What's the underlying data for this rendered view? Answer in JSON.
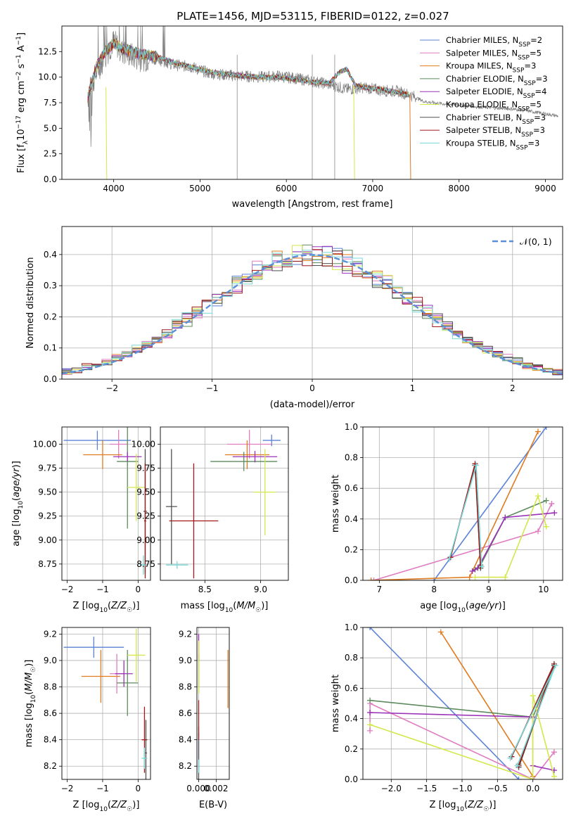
{
  "figure": {
    "title": "PLATE=1456, MJD=53115, FIBERID=0122, z=0.027"
  },
  "models": [
    {
      "name": "Chabrier MILES, N_SSP=2",
      "base": "Chabrier MILES, N",
      "sub": "SSP",
      "tail": "=2",
      "color": "#5b82d6"
    },
    {
      "name": "Salpeter MILES, N_SSP=5",
      "base": "Salpeter MILES, N",
      "sub": "SSP",
      "tail": "=5",
      "color": "#e07cc0"
    },
    {
      "name": "Kroupa MILES, N_SSP=3",
      "base": "Kroupa MILES, N",
      "sub": "SSP",
      "tail": "=3",
      "color": "#e07b20"
    },
    {
      "name": "Chabrier ELODIE, N_SSP=3",
      "base": "Chabrier ELODIE, N",
      "sub": "SSP",
      "tail": "=3",
      "color": "#5e8b5e"
    },
    {
      "name": "Salpeter ELODIE, N_SSP=4",
      "base": "Salpeter ELODIE, N",
      "sub": "SSP",
      "tail": "=4",
      "color": "#9b30b8"
    },
    {
      "name": "Kroupa ELODIE, N_SSP=5",
      "base": "Kroupa ELODIE, N",
      "sub": "SSP",
      "tail": "=5",
      "color": "#d4e84a"
    },
    {
      "name": "Chabrier STELIB, N_SSP=3",
      "base": "Chabrier STELIB, N",
      "sub": "SSP",
      "tail": "=3",
      "color": "#505050"
    },
    {
      "name": "Salpeter STELIB, N_SSP=3",
      "base": "Salpeter STELIB, N",
      "sub": "SSP",
      "tail": "=3",
      "color": "#a01818"
    },
    {
      "name": "Kroupa STELIB, N_SSP=3",
      "base": "Kroupa STELIB, N",
      "sub": "SSP",
      "tail": "=3",
      "color": "#7ad8d8"
    }
  ],
  "chart_data": [
    {
      "id": "spectrum",
      "type": "line",
      "title": "PLATE=1456, MJD=53115, FIBERID=0122, z=0.027",
      "xlabel": "wavelength [Angstrom, rest frame]",
      "ylabel": "Flux [f_λ 10^-17 erg cm^-2 s^-1 A^-1]",
      "xlim": [
        3400,
        9200
      ],
      "ylim": [
        0,
        15
      ],
      "xticks": [
        4000,
        5000,
        6000,
        7000,
        8000,
        9000
      ],
      "yticks": [
        0.0,
        2.5,
        5.0,
        7.5,
        10.0,
        12.5
      ],
      "xtick_labels": [
        "4000",
        "5000",
        "6000",
        "7000",
        "8000",
        "9000"
      ],
      "ytick_labels": [
        "0.0",
        "2.5",
        "5.0",
        "7.5",
        "10.0",
        "12.5"
      ],
      "legend": "upper right",
      "observed": {
        "x": [
          3700,
          3800,
          3900,
          4000,
          4100,
          4300,
          4500,
          4700,
          4900,
          5100,
          5300,
          5500,
          5700,
          5900,
          6100,
          6300,
          6500,
          6700,
          6900,
          7100,
          7300,
          7450,
          7600,
          7800,
          8000,
          8200,
          8400,
          8600,
          8800,
          9000,
          9150
        ],
        "y": [
          8.0,
          10.5,
          12.0,
          13.5,
          12.5,
          11.8,
          11.8,
          11.2,
          11.0,
          10.4,
          10.2,
          10.1,
          10.0,
          10.1,
          9.9,
          9.6,
          9.3,
          8.8,
          9.0,
          8.7,
          8.6,
          8.2,
          7.6,
          7.4,
          7.3,
          7.1,
          7.0,
          6.9,
          6.7,
          6.4,
          6.2
        ]
      },
      "model_spectrum": {
        "x": [
          3700,
          3800,
          3900,
          4000,
          4100,
          4300,
          4500,
          4700,
          4900,
          5100,
          5300,
          5500,
          5700,
          5900,
          6100,
          6300,
          6500,
          6600,
          6700,
          6800,
          6900,
          7100,
          7300,
          7420
        ],
        "y": [
          8.0,
          11.0,
          12.5,
          13.3,
          12.8,
          12.3,
          12.0,
          11.4,
          11.0,
          10.5,
          10.3,
          10.1,
          10.0,
          10.0,
          9.8,
          9.5,
          9.4,
          10.4,
          10.8,
          9.2,
          9.0,
          8.8,
          8.5,
          8.3
        ]
      }
    },
    {
      "id": "residuals",
      "type": "histogram",
      "xlabel": "(data-model)/error",
      "ylabel": "Normed distribution",
      "xlim": [
        -2.5,
        2.5
      ],
      "ylim": [
        0,
        0.49
      ],
      "xticks": [
        -2,
        -1,
        0,
        1,
        2
      ],
      "yticks": [
        0.0,
        0.1,
        0.2,
        0.3,
        0.4
      ],
      "xtick_labels": [
        "−2",
        "−1",
        "0",
        "1",
        "2"
      ],
      "ytick_labels": [
        "0.0",
        "0.1",
        "0.2",
        "0.3",
        "0.4"
      ],
      "legend_label": "𝒩(0, 1)",
      "legend": "upper right",
      "bin_width": 0.1,
      "bin_start": -2.5
    },
    {
      "id": "age_vs_Z",
      "type": "errorbar",
      "xlabel": "Z [log10(Z/Z☉)]",
      "ylabel": "age [log10(age/yr)]",
      "xlim": [
        -2.15,
        0.35
      ],
      "ylim": [
        8.58,
        10.18
      ],
      "xticks": [
        -2,
        -1,
        0
      ],
      "yticks": [
        8.75,
        9.0,
        9.25,
        9.5,
        9.75,
        10.0
      ],
      "xtick_labels": [
        "−2",
        "−1",
        "0"
      ],
      "ytick_labels": [
        "8.75",
        "9.00",
        "9.25",
        "9.50",
        "9.75",
        "10.00"
      ],
      "points": [
        {
          "m": 0,
          "x": -1.15,
          "xerr": 0.95,
          "y": 10.04,
          "yerr": 0.1
        },
        {
          "m": 1,
          "x": -0.55,
          "xerr": 0.25,
          "y": 10.0,
          "yerr": 0.15
        },
        {
          "m": 2,
          "x": -1.0,
          "xerr": 0.55,
          "y": 9.89,
          "yerr": 0.15
        },
        {
          "m": 3,
          "x": -0.3,
          "xerr": 0.3,
          "y": 9.82,
          "yerr": 0.7
        },
        {
          "m": 4,
          "x": -0.3,
          "xerr": 0.4,
          "y": 9.87,
          "yerr": 0.05
        },
        {
          "m": 5,
          "x": -0.05,
          "xerr": 0.25,
          "y": 9.55,
          "yerr": 0.35
        },
        {
          "m": 6,
          "x": 0.2,
          "xerr": 0.05,
          "y": 9.3,
          "yerr": 0.65
        },
        {
          "m": 7,
          "x": 0.2,
          "xerr": 0.03,
          "y": 9.2,
          "yerr": 0.6
        },
        {
          "m": 8,
          "x": 0.15,
          "xerr": 0.1,
          "y": 8.74,
          "yerr": 0.1
        }
      ]
    },
    {
      "id": "age_vs_mass",
      "type": "errorbar",
      "xlabel": "mass [log10(M/M☉)]",
      "ylabel": "",
      "xlim": [
        8.1,
        9.25
      ],
      "ylim": [
        8.58,
        10.18
      ],
      "xticks": [
        8.5,
        9.0
      ],
      "yticks": [
        8.75,
        9.0,
        9.25,
        9.5,
        9.75,
        10.0
      ],
      "xtick_labels": [
        "8.5",
        "9.0"
      ],
      "ytick_labels": [
        "8.75",
        "9.00",
        "9.25",
        "9.50",
        "9.75",
        "10.00"
      ],
      "points": [
        {
          "m": 0,
          "x": 9.1,
          "xerr": 0.08,
          "y": 10.04,
          "yerr": 0.06
        },
        {
          "m": 1,
          "x": 8.9,
          "xerr": 0.2,
          "y": 10.0,
          "yerr": 0.15
        },
        {
          "m": 2,
          "x": 8.88,
          "xerr": 0.2,
          "y": 9.89,
          "yerr": 0.15
        },
        {
          "m": 3,
          "x": 8.85,
          "xerr": 0.3,
          "y": 9.82,
          "yerr": 0.1
        },
        {
          "m": 4,
          "x": 8.95,
          "xerr": 0.2,
          "y": 9.87,
          "yerr": 0.06
        },
        {
          "m": 5,
          "x": 9.04,
          "xerr": 0.1,
          "y": 9.5,
          "yerr": 0.45
        },
        {
          "m": 6,
          "x": 8.2,
          "xerr": 0.05,
          "y": 9.35,
          "yerr": 0.6
        },
        {
          "m": 7,
          "x": 8.4,
          "xerr": 0.22,
          "y": 9.2,
          "yerr": 0.6
        },
        {
          "m": 8,
          "x": 8.25,
          "xerr": 0.1,
          "y": 8.74,
          "yerr": 0.04
        }
      ]
    },
    {
      "id": "weight_vs_age",
      "type": "line",
      "xlabel": "age [log10(age/yr)]",
      "ylabel": "mass weight",
      "xlim": [
        6.7,
        10.35
      ],
      "ylim": [
        0,
        1.0
      ],
      "xticks": [
        7,
        8,
        9,
        10
      ],
      "yticks": [
        0.0,
        0.2,
        0.4,
        0.6,
        0.8,
        1.0
      ],
      "xtick_labels": [
        "7",
        "8",
        "9",
        "10"
      ],
      "ytick_labels": [
        "0.0",
        "0.2",
        "0.4",
        "0.6",
        "0.8",
        "1.0"
      ],
      "series": [
        {
          "m": 0,
          "x": [
            8.0,
            10.05
          ],
          "y": [
            0.0,
            1.0
          ]
        },
        {
          "m": 1,
          "x": [
            6.9,
            9.9,
            10.15,
            10.15
          ],
          "y": [
            0.0,
            0.32,
            0.5,
            0.5
          ]
        },
        {
          "m": 2,
          "x": [
            6.85,
            8.65,
            9.9
          ],
          "y": [
            0.0,
            0.02,
            0.97
          ]
        },
        {
          "m": 3,
          "x": [
            8.75,
            8.85,
            9.3,
            10.05
          ],
          "y": [
            0.07,
            0.1,
            0.41,
            0.52
          ]
        },
        {
          "m": 4,
          "x": [
            8.7,
            8.8,
            9.3,
            10.2
          ],
          "y": [
            0.06,
            0.08,
            0.41,
            0.44
          ]
        },
        {
          "m": 5,
          "x": [
            8.75,
            9.3,
            9.9,
            10.05
          ],
          "y": [
            0.02,
            0.02,
            0.55,
            0.35
          ]
        },
        {
          "m": 6,
          "x": [
            8.3,
            8.75,
            8.85
          ],
          "y": [
            0.15,
            0.75,
            0.08
          ]
        },
        {
          "m": 7,
          "x": [
            8.3,
            8.75,
            8.85
          ],
          "y": [
            0.15,
            0.76,
            0.09
          ]
        },
        {
          "m": 8,
          "x": [
            8.28,
            8.77,
            8.87
          ],
          "y": [
            0.14,
            0.75,
            0.09
          ]
        }
      ]
    },
    {
      "id": "mass_vs_Z",
      "type": "errorbar",
      "xlabel": "Z [log10(Z/Z☉)]",
      "ylabel": "mass [log10(M/M☉)]",
      "xlim": [
        -2.15,
        0.35
      ],
      "ylim": [
        8.1,
        9.25
      ],
      "xticks": [
        -2,
        -1,
        0
      ],
      "yticks": [
        8.2,
        8.4,
        8.6,
        8.8,
        9.0,
        9.2
      ],
      "xtick_labels": [
        "−2",
        "−1",
        "0"
      ],
      "ytick_labels": [
        "8.2",
        "8.4",
        "8.6",
        "8.8",
        "9.0",
        "9.2"
      ],
      "points": [
        {
          "m": 0,
          "x": -1.25,
          "xerr": 0.85,
          "y": 9.1,
          "yerr": 0.08
        },
        {
          "m": 1,
          "x": -0.6,
          "xerr": 0.2,
          "y": 8.9,
          "yerr": 0.15
        },
        {
          "m": 2,
          "x": -1.05,
          "xerr": 0.55,
          "y": 8.88,
          "yerr": 0.2
        },
        {
          "m": 3,
          "x": -0.3,
          "xerr": 0.3,
          "y": 8.83,
          "yerr": 0.25
        },
        {
          "m": 4,
          "x": -0.4,
          "xerr": 0.25,
          "y": 8.9,
          "yerr": 0.1
        },
        {
          "m": 5,
          "x": -0.05,
          "xerr": 0.25,
          "y": 9.04,
          "yerr": 0.2
        },
        {
          "m": 6,
          "x": 0.22,
          "xerr": 0.03,
          "y": 8.3,
          "yerr": 0.25
        },
        {
          "m": 7,
          "x": 0.18,
          "xerr": 0.08,
          "y": 8.4,
          "yerr": 0.25
        },
        {
          "m": 8,
          "x": 0.18,
          "xerr": 0.08,
          "y": 8.26,
          "yerr": 0.08
        }
      ]
    },
    {
      "id": "mass_vs_ebv",
      "type": "errorbar",
      "xlabel": "E(B-V)",
      "ylabel": "",
      "xlim": [
        -0.0002,
        0.0035
      ],
      "ylim": [
        8.1,
        9.25
      ],
      "xticks": [
        0.0,
        0.002
      ],
      "yticks": [
        8.2,
        8.4,
        8.6,
        8.8,
        9.0,
        9.2
      ],
      "xtick_labels": [
        "0.000",
        "0.002"
      ],
      "ytick_labels": [
        "8.2",
        "8.4",
        "8.6",
        "8.8",
        "9.0",
        "9.2"
      ],
      "points": [
        {
          "m": 0,
          "x": 0.0,
          "xerr": 0.0,
          "y": 8.3,
          "yerr": 0.15
        },
        {
          "m": 1,
          "x": 0.0,
          "xerr": 0.0,
          "y": 9.0,
          "yerr": 0.2
        },
        {
          "m": 2,
          "x": 0.00335,
          "xerr": 0.0,
          "y": 8.86,
          "yerr": 0.22
        },
        {
          "m": 3,
          "x": 0.0,
          "xerr": 0.0,
          "y": 8.9,
          "yerr": 0.15
        },
        {
          "m": 4,
          "x": 0.0,
          "xerr": 0.0,
          "y": 9.1,
          "yerr": 0.1
        },
        {
          "m": 5,
          "x": 0.0,
          "xerr": 0.0,
          "y": 8.95,
          "yerr": 0.2
        },
        {
          "m": 6,
          "x": 0.0,
          "xerr": 0.0,
          "y": 8.3,
          "yerr": 0.2
        },
        {
          "m": 7,
          "x": 0.0,
          "xerr": 0.0,
          "y": 8.55,
          "yerr": 0.15
        },
        {
          "m": 8,
          "x": 0.0,
          "xerr": 0.0,
          "y": 8.2,
          "yerr": 0.05
        }
      ]
    },
    {
      "id": "weight_vs_Z",
      "type": "line",
      "xlabel": "Z [log10(Z/Z☉)]",
      "ylabel": "mass weight",
      "xlim": [
        -2.4,
        0.42
      ],
      "ylim": [
        0,
        1.0
      ],
      "xticks": [
        -2.0,
        -1.5,
        -1.0,
        -0.5,
        0.0
      ],
      "yticks": [
        0.0,
        0.2,
        0.4,
        0.6,
        0.8,
        1.0
      ],
      "xtick_labels": [
        "−2.0",
        "−1.5",
        "−1.0",
        "−0.5",
        "0.0"
      ],
      "ytick_labels": [
        "0.0",
        "0.2",
        "0.4",
        "0.6",
        "0.8",
        "1.0"
      ],
      "series": [
        {
          "m": 0,
          "x": [
            -2.3,
            -0.2
          ],
          "y": [
            1.0,
            0.0
          ]
        },
        {
          "m": 1,
          "x": [
            -2.3,
            -2.3,
            0.0,
            0.3,
            0.3
          ],
          "y": [
            0.32,
            0.5,
            0.0,
            0.18,
            0.18
          ]
        },
        {
          "m": 2,
          "x": [
            -1.3,
            0.0,
            0.0
          ],
          "y": [
            0.97,
            0.02,
            0.0
          ]
        },
        {
          "m": 3,
          "x": [
            -2.3,
            0.0,
            0.3,
            -0.2
          ],
          "y": [
            0.52,
            0.41,
            0.75,
            0.1
          ]
        },
        {
          "m": 4,
          "x": [
            -2.3,
            0.0,
            0.0,
            0.3
          ],
          "y": [
            0.44,
            0.41,
            0.09,
            0.06
          ]
        },
        {
          "m": 5,
          "x": [
            -2.3,
            0.0,
            0.0,
            0.3
          ],
          "y": [
            0.36,
            0.0,
            0.55,
            0.02
          ]
        },
        {
          "m": 6,
          "x": [
            -0.3,
            0.3,
            -0.2
          ],
          "y": [
            0.15,
            0.75,
            0.08
          ]
        },
        {
          "m": 7,
          "x": [
            -0.3,
            0.3,
            -0.2
          ],
          "y": [
            0.15,
            0.76,
            0.09
          ]
        },
        {
          "m": 8,
          "x": [
            -0.32,
            0.32,
            -0.22
          ],
          "y": [
            0.14,
            0.75,
            0.09
          ]
        }
      ]
    }
  ]
}
